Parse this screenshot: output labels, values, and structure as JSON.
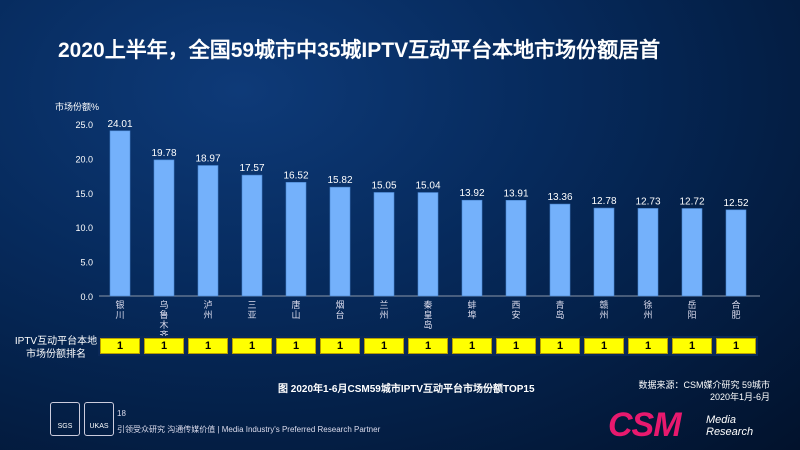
{
  "title": "2020上半年，全国59城市中35城IPTV互动平台本地市场份额居首",
  "chart_data": {
    "type": "bar",
    "ylabel": "市场份额%",
    "ylim": [
      0,
      25
    ],
    "yticks": [
      "0.0",
      "5.0",
      "10.0",
      "15.0",
      "20.0",
      "25.0"
    ],
    "categories": [
      "银川",
      "乌鲁木齐",
      "泸州",
      "三亚",
      "唐山",
      "烟台",
      "兰州",
      "秦皇岛",
      "蚌埠",
      "西安",
      "青岛",
      "赣州",
      "徐州",
      "岳阳",
      "合肥"
    ],
    "values": [
      24.01,
      19.78,
      18.97,
      17.57,
      16.52,
      15.82,
      15.05,
      15.04,
      13.92,
      13.91,
      13.36,
      12.78,
      12.73,
      12.72,
      12.52
    ],
    "bar_color": "#74b1fb",
    "grid": false
  },
  "rank": {
    "label": "IPTV互动平台本地市场份额排名",
    "values": [
      "1",
      "1",
      "1",
      "1",
      "1",
      "1",
      "1",
      "1",
      "1",
      "1",
      "1",
      "1",
      "1",
      "1",
      "1"
    ],
    "color": "#ffff00"
  },
  "caption": "图  2020年1-6月CSM59城市IPTV互动平台市场份额TOP15",
  "source": {
    "line1": "数据来源：CSM媒介研究 59城市",
    "line2": "2020年1月-6月"
  },
  "footer": {
    "page": "18",
    "slogan": "引领受众研究  沟通传媒价值 | Media Industry's Preferred Research Partner",
    "cert1": "SGS",
    "cert2": "UKAS"
  },
  "logo": {
    "text": "CSM",
    "sub1": "Media",
    "sub2": "Research",
    "color": "#e8196e"
  }
}
